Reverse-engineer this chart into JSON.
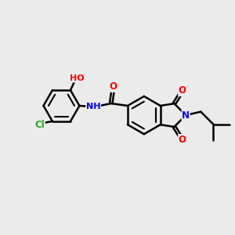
{
  "bg_color": "#ebebeb",
  "bond_color": "#000000",
  "bond_width": 1.8,
  "atom_colors": {
    "O": "#ff0000",
    "N": "#0000ff",
    "Cl": "#22aa22",
    "C": "#000000"
  },
  "font_size": 8.5,
  "fig_width": 3.0,
  "fig_height": 3.0
}
